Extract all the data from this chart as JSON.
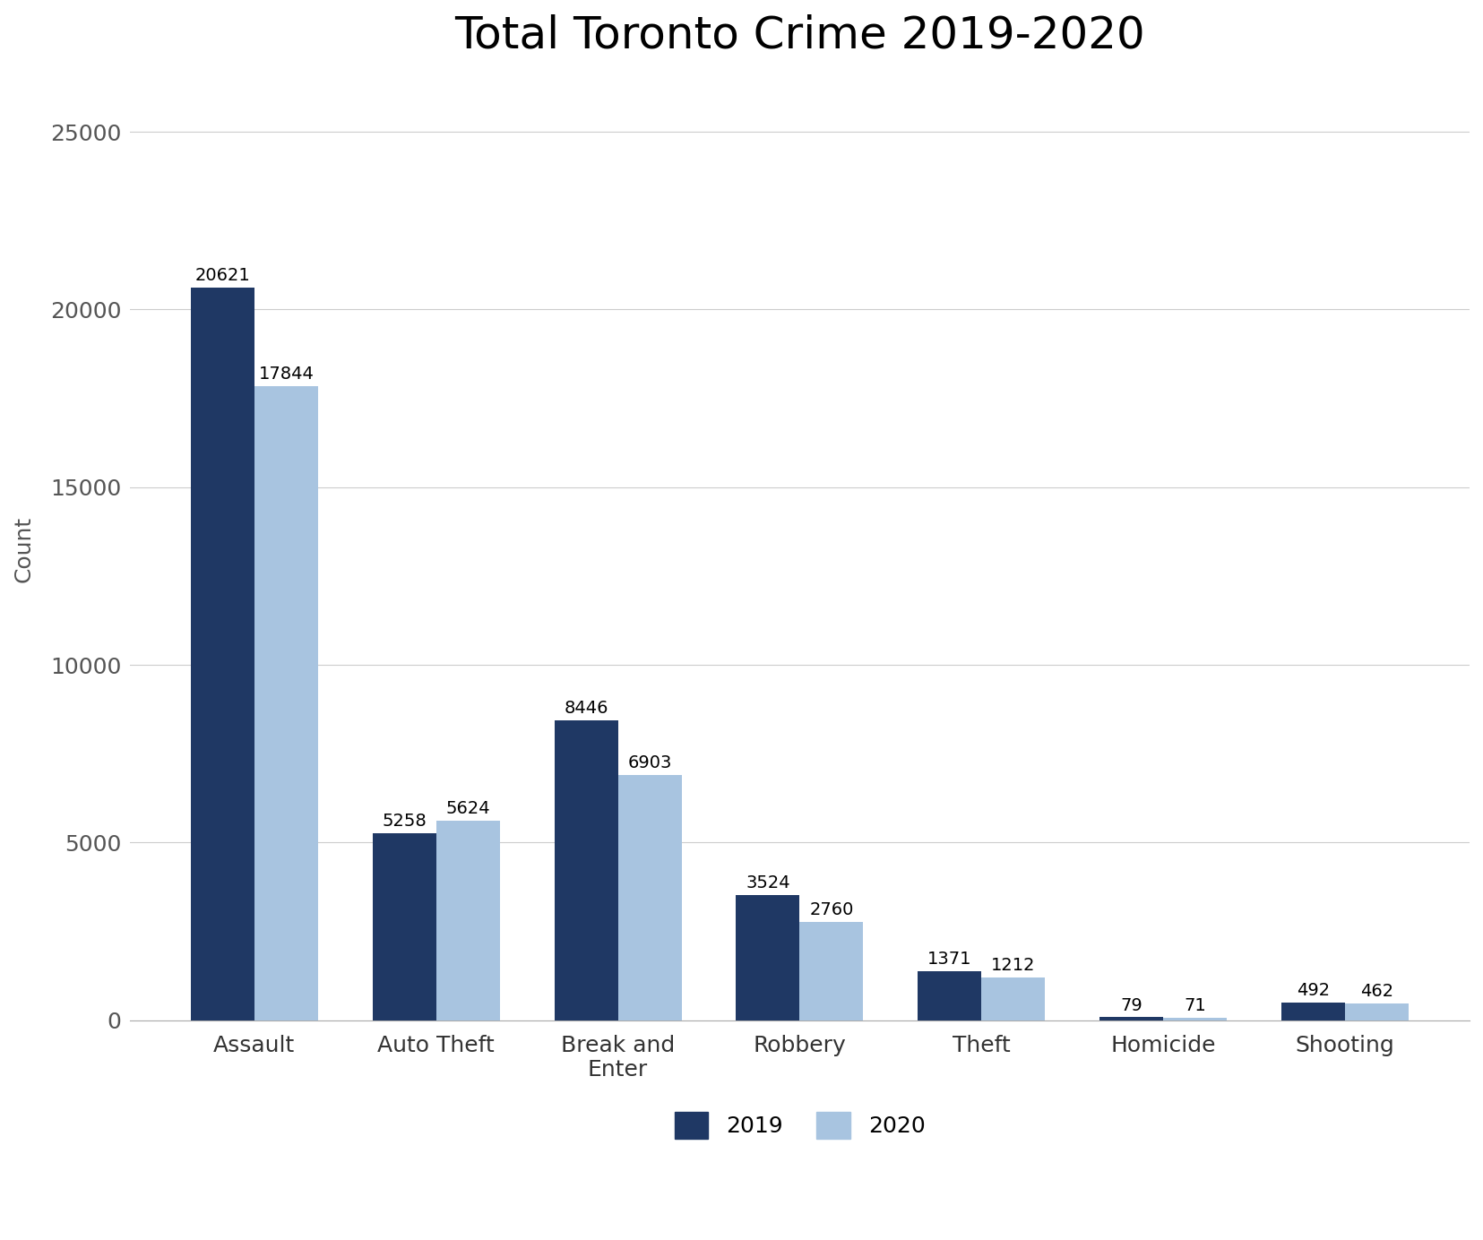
{
  "title": "Total Toronto Crime 2019-2020",
  "categories": [
    "Assault",
    "Auto Theft",
    "Break and\nEnter",
    "Robbery",
    "Theft",
    "Homicide",
    "Shooting"
  ],
  "values_2019": [
    20621,
    5258,
    8446,
    3524,
    1371,
    79,
    492
  ],
  "values_2020": [
    17844,
    5624,
    6903,
    2760,
    1212,
    71,
    462
  ],
  "color_2019": "#1f3864",
  "color_2020": "#a8c4e0",
  "ylabel": "Count",
  "ylim": [
    0,
    26500
  ],
  "yticks": [
    0,
    5000,
    10000,
    15000,
    20000,
    25000
  ],
  "ytick_labels": [
    "0",
    "5000",
    "10000",
    "15000",
    "20000",
    "25000"
  ],
  "legend_labels": [
    "2019",
    "2020"
  ],
  "background_color": "#ffffff",
  "title_fontsize": 36,
  "label_fontsize": 18,
  "tick_fontsize": 18,
  "bar_width": 0.35,
  "annotation_fontsize": 14
}
